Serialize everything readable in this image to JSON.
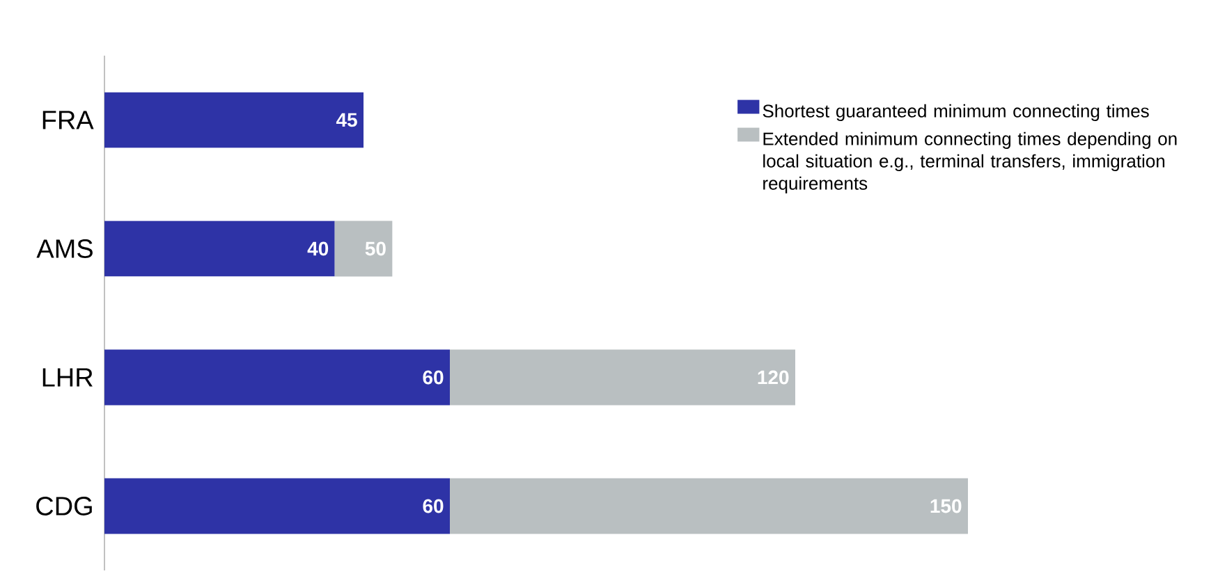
{
  "chart_data": {
    "type": "bar",
    "orientation": "horizontal",
    "stacked": true,
    "categories": [
      "FRA",
      "AMS",
      "LHR",
      "CDG"
    ],
    "series": [
      {
        "name": "Shortest guaranteed minimum connecting times",
        "color": "#2e33a6",
        "values": [
          45,
          40,
          60,
          60
        ],
        "value_labels": [
          "45",
          "40",
          "60",
          "60"
        ]
      },
      {
        "name": "Extended minimum connecting times depending on local situation e.g., terminal transfers, immigration requirements",
        "color": "#b9bfc1",
        "values": [
          null,
          10,
          60,
          90
        ]
      }
    ],
    "totals": [
      null,
      "50",
      "120",
      "150"
    ],
    "legend": "top right",
    "tick_labels": "y"
  }
}
